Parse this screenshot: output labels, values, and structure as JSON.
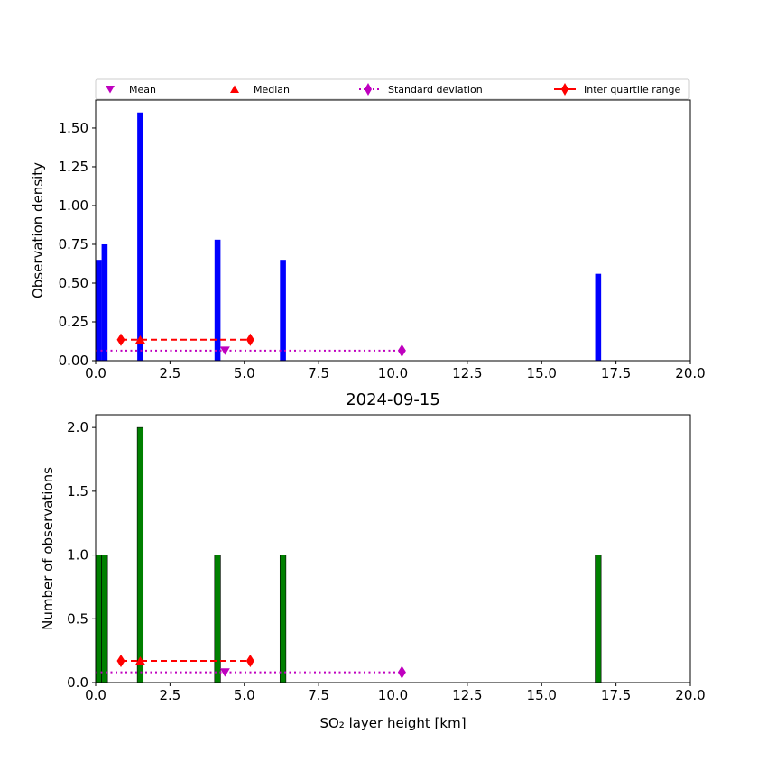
{
  "legend": {
    "items": [
      {
        "label": "Mean",
        "marker": "triangle-down",
        "color": "#bf00bf",
        "line": "none"
      },
      {
        "label": "Median",
        "marker": "triangle-up",
        "color": "#ff0000",
        "line": "none"
      },
      {
        "label": "Standard deviation",
        "marker": "diamond",
        "color": "#bf00bf",
        "line": "dotted"
      },
      {
        "label": "Inter quartile range",
        "marker": "diamond",
        "color": "#ff0000",
        "line": "solid"
      }
    ],
    "placement": "above top chart"
  },
  "chart_data": [
    {
      "type": "bar",
      "title": "",
      "xlabel": "",
      "ylabel": "Observation density",
      "xlim": [
        0,
        20
      ],
      "ylim": [
        0,
        1.68
      ],
      "xticks": [
        "0.0",
        "2.5",
        "5.0",
        "7.5",
        "10.0",
        "12.5",
        "15.0",
        "17.5",
        "20.0"
      ],
      "yticks": [
        "0.00",
        "0.25",
        "0.50",
        "0.75",
        "1.00",
        "1.25",
        "1.50"
      ],
      "xtick_values": [
        0,
        2.5,
        5,
        7.5,
        10,
        12.5,
        15,
        17.5,
        20
      ],
      "ytick_values": [
        0,
        0.25,
        0.5,
        0.75,
        1.0,
        1.25,
        1.5
      ],
      "bar_color": "#0000ff",
      "bin_width": 0.2,
      "bars": [
        {
          "x": 0.0,
          "value": 0.65
        },
        {
          "x": 0.2,
          "value": 0.75
        },
        {
          "x": 1.4,
          "value": 1.6
        },
        {
          "x": 4.0,
          "value": 0.78
        },
        {
          "x": 6.2,
          "value": 0.65
        },
        {
          "x": 16.8,
          "value": 0.56
        }
      ],
      "stats": {
        "mean": {
          "x": 4.35,
          "y": 0.065
        },
        "median": {
          "x": 1.5,
          "y": 0.135
        },
        "std": {
          "from": 0.0,
          "to": 10.3,
          "y": 0.065
        },
        "iqr": {
          "from": 0.85,
          "to": 5.2,
          "y": 0.135
        }
      }
    },
    {
      "type": "bar",
      "title": "2024-09-15",
      "xlabel": "SO₂ layer height [km]",
      "ylabel": "Number of observations",
      "xlim": [
        0,
        20
      ],
      "ylim": [
        0,
        2.1
      ],
      "xticks": [
        "0.0",
        "2.5",
        "5.0",
        "7.5",
        "10.0",
        "12.5",
        "15.0",
        "17.5",
        "20.0"
      ],
      "yticks": [
        "0.0",
        "0.5",
        "1.0",
        "1.5",
        "2.0"
      ],
      "xtick_values": [
        0,
        2.5,
        5,
        7.5,
        10,
        12.5,
        15,
        17.5,
        20
      ],
      "ytick_values": [
        0,
        0.5,
        1.0,
        1.5,
        2.0
      ],
      "bar_color": "#008000",
      "bin_width": 0.2,
      "bars": [
        {
          "x": 0.0,
          "value": 1
        },
        {
          "x": 0.2,
          "value": 1
        },
        {
          "x": 1.4,
          "value": 2
        },
        {
          "x": 4.0,
          "value": 1
        },
        {
          "x": 6.2,
          "value": 1
        },
        {
          "x": 16.8,
          "value": 1
        }
      ],
      "stats": {
        "mean": {
          "x": 4.35,
          "y": 0.08
        },
        "median": {
          "x": 1.5,
          "y": 0.17
        },
        "std": {
          "from": 0.0,
          "to": 10.3,
          "y": 0.08
        },
        "iqr": {
          "from": 0.85,
          "to": 5.2,
          "y": 0.17
        }
      }
    }
  ]
}
